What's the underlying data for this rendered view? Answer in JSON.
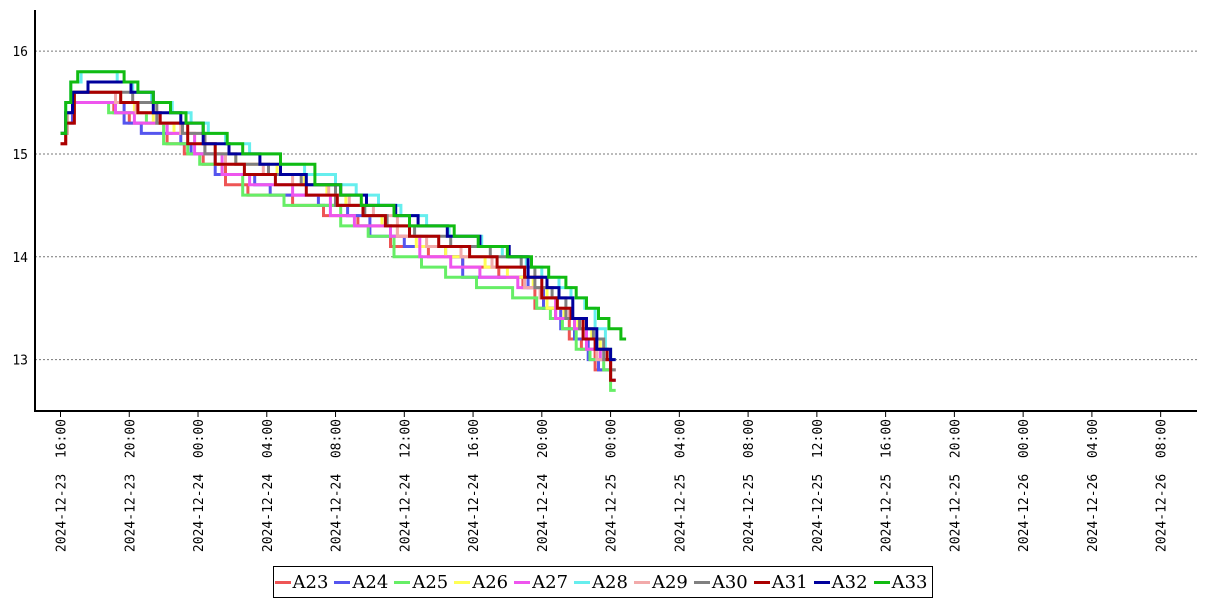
{
  "chart_data": {
    "type": "line",
    "ylim": [
      12.5,
      16.4
    ],
    "y_ticks": [
      "13",
      "14",
      "15",
      "16"
    ],
    "x_tick_labels": [
      "2024-12-23  16:00",
      "2024-12-23  20:00",
      "2024-12-24  00:00",
      "2024-12-24  04:00",
      "2024-12-24  08:00",
      "2024-12-24  12:00",
      "2024-12-24  16:00",
      "2024-12-24  20:00",
      "2024-12-25  00:00",
      "2024-12-25  04:00",
      "2024-12-25  08:00",
      "2024-12-25  12:00",
      "2024-12-25  16:00",
      "2024-12-25  20:00",
      "2024-12-26  00:00",
      "2024-12-26  04:00",
      "2024-12-26  08:00"
    ],
    "grid": "horizontal dotted",
    "legend_position": "bottom",
    "series": [
      {
        "name": "A23",
        "color": "#ee5555",
        "values": [
          [
            0.0,
            15.1
          ],
          [
            0.3,
            15.3
          ],
          [
            0.8,
            15.5
          ],
          [
            3.1,
            15.4
          ],
          [
            4.0,
            15.3
          ],
          [
            6.2,
            15.1
          ],
          [
            7.2,
            15.0
          ],
          [
            8.3,
            14.9
          ],
          [
            9.6,
            14.7
          ],
          [
            10.9,
            14.6
          ],
          [
            13.5,
            14.5
          ],
          [
            15.3,
            14.4
          ],
          [
            17.3,
            14.3
          ],
          [
            19.2,
            14.1
          ],
          [
            21.4,
            14.0
          ],
          [
            23.4,
            13.9
          ],
          [
            25.5,
            13.8
          ],
          [
            26.9,
            13.7
          ],
          [
            27.6,
            13.5
          ],
          [
            28.8,
            13.4
          ],
          [
            29.6,
            13.2
          ],
          [
            30.3,
            13.1
          ],
          [
            31.1,
            12.9
          ],
          [
            32.0,
            12.8
          ]
        ]
      },
      {
        "name": "A24",
        "color": "#5555ee",
        "values": [
          [
            0.0,
            15.2
          ],
          [
            0.3,
            15.3
          ],
          [
            0.7,
            15.5
          ],
          [
            3.7,
            15.3
          ],
          [
            4.7,
            15.2
          ],
          [
            7.0,
            15.1
          ],
          [
            7.6,
            15.0
          ],
          [
            9.0,
            14.8
          ],
          [
            11.3,
            14.7
          ],
          [
            12.2,
            14.6
          ],
          [
            15.0,
            14.5
          ],
          [
            16.7,
            14.4
          ],
          [
            18.0,
            14.2
          ],
          [
            20.0,
            14.1
          ],
          [
            22.4,
            14.0
          ],
          [
            23.4,
            13.8
          ],
          [
            25.4,
            13.8
          ],
          [
            27.2,
            13.7
          ],
          [
            28.1,
            13.5
          ],
          [
            29.1,
            13.3
          ],
          [
            29.9,
            13.2
          ],
          [
            30.7,
            13.0
          ],
          [
            31.3,
            12.9
          ],
          [
            32.0,
            12.8
          ]
        ]
      },
      {
        "name": "A25",
        "color": "#66ee66",
        "values": [
          [
            0.0,
            15.2
          ],
          [
            0.4,
            15.4
          ],
          [
            0.8,
            15.5
          ],
          [
            2.8,
            15.4
          ],
          [
            5.0,
            15.3
          ],
          [
            6.0,
            15.1
          ],
          [
            7.4,
            15.0
          ],
          [
            8.1,
            14.9
          ],
          [
            9.4,
            14.8
          ],
          [
            10.6,
            14.6
          ],
          [
            13.0,
            14.5
          ],
          [
            16.3,
            14.3
          ],
          [
            17.9,
            14.2
          ],
          [
            19.4,
            14.0
          ],
          [
            21.0,
            13.9
          ],
          [
            22.4,
            13.8
          ],
          [
            24.2,
            13.7
          ],
          [
            26.3,
            13.6
          ],
          [
            27.7,
            13.5
          ],
          [
            28.5,
            13.4
          ],
          [
            29.2,
            13.3
          ],
          [
            30.0,
            13.1
          ],
          [
            30.8,
            13.0
          ],
          [
            31.6,
            12.9
          ],
          [
            32.0,
            12.7
          ]
        ]
      },
      {
        "name": "A26",
        "color": "#ffff55",
        "values": [
          [
            0.0,
            15.2
          ],
          [
            0.3,
            15.4
          ],
          [
            0.8,
            15.6
          ],
          [
            3.5,
            15.5
          ],
          [
            4.3,
            15.4
          ],
          [
            5.4,
            15.3
          ],
          [
            6.6,
            15.2
          ],
          [
            7.8,
            15.1
          ],
          [
            9.0,
            15.0
          ],
          [
            10.2,
            14.9
          ],
          [
            12.6,
            14.8
          ],
          [
            14.2,
            14.7
          ],
          [
            15.5,
            14.6
          ],
          [
            16.6,
            14.5
          ],
          [
            17.6,
            14.4
          ],
          [
            18.7,
            14.3
          ],
          [
            19.6,
            14.2
          ],
          [
            20.7,
            14.1
          ],
          [
            22.4,
            14.0
          ],
          [
            24.7,
            13.9
          ],
          [
            26.0,
            13.8
          ],
          [
            27.5,
            13.7
          ],
          [
            28.3,
            13.5
          ],
          [
            29.3,
            13.4
          ],
          [
            30.1,
            13.3
          ],
          [
            30.9,
            13.2
          ],
          [
            31.4,
            13.1
          ],
          [
            32.0,
            12.9
          ]
        ]
      },
      {
        "name": "A27",
        "color": "#ee55ee",
        "values": [
          [
            0.0,
            15.2
          ],
          [
            0.3,
            15.4
          ],
          [
            0.7,
            15.5
          ],
          [
            3.2,
            15.4
          ],
          [
            4.3,
            15.3
          ],
          [
            6.2,
            15.2
          ],
          [
            7.8,
            15.0
          ],
          [
            9.4,
            14.8
          ],
          [
            11.0,
            14.7
          ],
          [
            13.5,
            14.6
          ],
          [
            15.7,
            14.4
          ],
          [
            17.1,
            14.3
          ],
          [
            19.2,
            14.2
          ],
          [
            20.9,
            14.0
          ],
          [
            22.7,
            13.9
          ],
          [
            24.4,
            13.8
          ],
          [
            26.6,
            13.7
          ],
          [
            28.0,
            13.6
          ],
          [
            28.8,
            13.4
          ],
          [
            29.9,
            13.3
          ],
          [
            30.6,
            13.1
          ],
          [
            31.4,
            13.0
          ],
          [
            32.0,
            12.9
          ]
        ]
      },
      {
        "name": "A28",
        "color": "#66eeee",
        "values": [
          [
            0.0,
            15.2
          ],
          [
            0.3,
            15.5
          ],
          [
            0.6,
            15.7
          ],
          [
            1.2,
            15.8
          ],
          [
            3.3,
            15.7
          ],
          [
            4.2,
            15.6
          ],
          [
            5.3,
            15.5
          ],
          [
            6.5,
            15.4
          ],
          [
            7.6,
            15.3
          ],
          [
            8.6,
            15.2
          ],
          [
            9.6,
            15.1
          ],
          [
            11.0,
            15.0
          ],
          [
            12.8,
            14.9
          ],
          [
            14.2,
            14.8
          ],
          [
            16.0,
            14.7
          ],
          [
            17.2,
            14.6
          ],
          [
            18.5,
            14.5
          ],
          [
            19.8,
            14.4
          ],
          [
            21.3,
            14.3
          ],
          [
            22.6,
            14.2
          ],
          [
            24.5,
            14.1
          ],
          [
            25.7,
            14.0
          ],
          [
            27.1,
            13.9
          ],
          [
            28.0,
            13.8
          ],
          [
            29.0,
            13.7
          ],
          [
            29.7,
            13.6
          ],
          [
            30.5,
            13.5
          ],
          [
            31.1,
            13.3
          ],
          [
            31.7,
            13.1
          ],
          [
            32.0,
            13.0
          ]
        ]
      },
      {
        "name": "A29",
        "color": "#f2aaaa",
        "values": [
          [
            0.0,
            15.2
          ],
          [
            0.4,
            15.4
          ],
          [
            0.8,
            15.6
          ],
          [
            3.2,
            15.5
          ],
          [
            4.4,
            15.4
          ],
          [
            5.7,
            15.3
          ],
          [
            7.0,
            15.2
          ],
          [
            8.4,
            15.0
          ],
          [
            9.6,
            14.9
          ],
          [
            11.8,
            14.8
          ],
          [
            13.5,
            14.7
          ],
          [
            15.6,
            14.6
          ],
          [
            16.8,
            14.5
          ],
          [
            18.2,
            14.4
          ],
          [
            19.6,
            14.2
          ],
          [
            21.3,
            14.1
          ],
          [
            23.3,
            14.0
          ],
          [
            25.1,
            13.9
          ],
          [
            27.0,
            13.7
          ],
          [
            27.9,
            13.6
          ],
          [
            28.9,
            13.5
          ],
          [
            29.6,
            13.4
          ],
          [
            30.4,
            13.2
          ],
          [
            31.2,
            13.0
          ],
          [
            32.0,
            12.9
          ]
        ]
      },
      {
        "name": "A30",
        "color": "#808080",
        "values": [
          [
            0.0,
            15.2
          ],
          [
            0.3,
            15.4
          ],
          [
            0.8,
            15.6
          ],
          [
            3.1,
            15.6
          ],
          [
            4.2,
            15.5
          ],
          [
            5.6,
            15.3
          ],
          [
            7.1,
            15.2
          ],
          [
            8.4,
            15.0
          ],
          [
            10.2,
            14.9
          ],
          [
            12.1,
            14.8
          ],
          [
            14.0,
            14.7
          ],
          [
            16.0,
            14.5
          ],
          [
            17.7,
            14.4
          ],
          [
            19.0,
            14.3
          ],
          [
            20.6,
            14.2
          ],
          [
            22.7,
            14.1
          ],
          [
            25.0,
            14.0
          ],
          [
            26.8,
            13.9
          ],
          [
            27.6,
            13.7
          ],
          [
            28.6,
            13.6
          ],
          [
            29.4,
            13.4
          ],
          [
            30.2,
            13.3
          ],
          [
            31.0,
            13.2
          ],
          [
            31.6,
            13.0
          ],
          [
            32.0,
            12.9
          ]
        ]
      },
      {
        "name": "A31",
        "color": "#aa0000",
        "values": [
          [
            0.0,
            15.1
          ],
          [
            0.3,
            15.3
          ],
          [
            0.8,
            15.6
          ],
          [
            2.2,
            15.6
          ],
          [
            3.5,
            15.5
          ],
          [
            4.5,
            15.4
          ],
          [
            5.8,
            15.3
          ],
          [
            7.4,
            15.1
          ],
          [
            9.0,
            14.9
          ],
          [
            10.7,
            14.8
          ],
          [
            12.5,
            14.7
          ],
          [
            14.3,
            14.6
          ],
          [
            16.1,
            14.5
          ],
          [
            17.6,
            14.4
          ],
          [
            18.9,
            14.3
          ],
          [
            20.3,
            14.2
          ],
          [
            22.0,
            14.1
          ],
          [
            23.8,
            14.0
          ],
          [
            25.4,
            13.9
          ],
          [
            27.0,
            13.8
          ],
          [
            28.0,
            13.6
          ],
          [
            28.9,
            13.5
          ],
          [
            29.7,
            13.4
          ],
          [
            30.4,
            13.2
          ],
          [
            31.1,
            13.1
          ],
          [
            31.8,
            13.0
          ],
          [
            32.0,
            12.8
          ]
        ]
      },
      {
        "name": "A32",
        "color": "#00009c",
        "values": [
          [
            0.0,
            15.2
          ],
          [
            0.3,
            15.4
          ],
          [
            0.7,
            15.6
          ],
          [
            1.6,
            15.7
          ],
          [
            3.0,
            15.7
          ],
          [
            4.1,
            15.6
          ],
          [
            5.4,
            15.4
          ],
          [
            7.0,
            15.3
          ],
          [
            8.3,
            15.1
          ],
          [
            9.8,
            15.0
          ],
          [
            11.6,
            14.9
          ],
          [
            12.8,
            14.8
          ],
          [
            14.3,
            14.7
          ],
          [
            16.3,
            14.6
          ],
          [
            17.8,
            14.5
          ],
          [
            19.5,
            14.4
          ],
          [
            20.8,
            14.3
          ],
          [
            22.5,
            14.2
          ],
          [
            24.4,
            14.1
          ],
          [
            26.1,
            14.0
          ],
          [
            27.2,
            13.8
          ],
          [
            28.3,
            13.7
          ],
          [
            29.0,
            13.6
          ],
          [
            29.8,
            13.4
          ],
          [
            30.6,
            13.3
          ],
          [
            31.2,
            13.1
          ],
          [
            32.0,
            13.0
          ]
        ]
      },
      {
        "name": "A33",
        "color": "#11bb11",
        "values": [
          [
            0.0,
            15.2
          ],
          [
            0.3,
            15.5
          ],
          [
            0.6,
            15.7
          ],
          [
            1.0,
            15.8
          ],
          [
            2.8,
            15.8
          ],
          [
            3.7,
            15.7
          ],
          [
            4.5,
            15.6
          ],
          [
            5.4,
            15.5
          ],
          [
            6.4,
            15.4
          ],
          [
            7.3,
            15.3
          ],
          [
            8.3,
            15.2
          ],
          [
            9.7,
            15.1
          ],
          [
            10.6,
            15.0
          ],
          [
            12.8,
            14.9
          ],
          [
            14.8,
            14.7
          ],
          [
            16.3,
            14.6
          ],
          [
            17.5,
            14.5
          ],
          [
            19.4,
            14.4
          ],
          [
            20.3,
            14.3
          ],
          [
            22.9,
            14.2
          ],
          [
            24.3,
            14.1
          ],
          [
            26.0,
            14.0
          ],
          [
            27.4,
            13.9
          ],
          [
            28.4,
            13.8
          ],
          [
            29.4,
            13.7
          ],
          [
            30.0,
            13.6
          ],
          [
            30.6,
            13.5
          ],
          [
            31.3,
            13.4
          ],
          [
            31.9,
            13.3
          ],
          [
            32.6,
            13.2
          ]
        ]
      }
    ]
  }
}
